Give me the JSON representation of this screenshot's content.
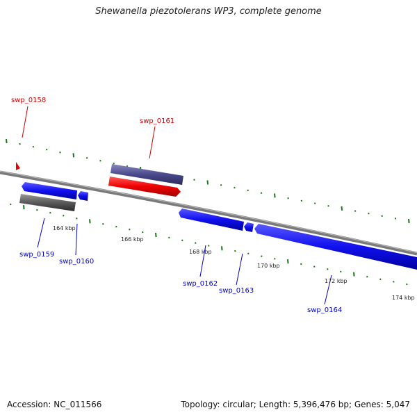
{
  "title": "Shewanella piezotolerans WP3, complete genome",
  "footer": {
    "accession": "Accession: NC_011566",
    "summary": "Topology: circular; Length: 5,396,476 bp; Genes: 5,047"
  },
  "colors": {
    "backbone": "#7a7a7a",
    "tick": "#1a7a1a",
    "gene_blue": "#1010ee",
    "gene_red": "#ee0000",
    "gene_purple": "#4a4a8c",
    "gene_gray": "#5a5a5a",
    "label_red": "#cc0000",
    "label_blue": "#0000cc"
  },
  "scale_labels": [
    "164 kbp",
    "166 kbp",
    "168 kbp",
    "170 kbp",
    "172 kbp",
    "174 kbp"
  ],
  "genes": [
    {
      "id": "swp_0158",
      "color": "red"
    },
    {
      "id": "swp_0159",
      "color": "blue"
    },
    {
      "id": "swp_0160",
      "color": "blue"
    },
    {
      "id": "swp_0161",
      "color": "red"
    },
    {
      "id": "swp_0162",
      "color": "blue"
    },
    {
      "id": "swp_0163",
      "color": "blue"
    },
    {
      "id": "swp_0164",
      "color": "blue"
    }
  ]
}
